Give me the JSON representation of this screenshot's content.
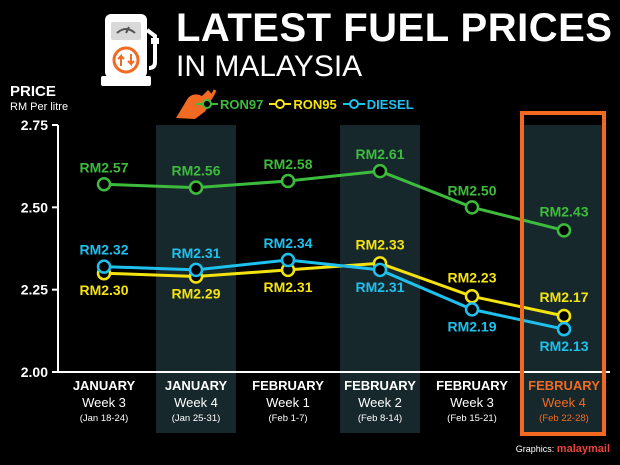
{
  "header": {
    "title_line1": "LATEST FUEL PRICES",
    "title_line2": "IN MALAYSIA"
  },
  "icons": {
    "pump": "fuel-pump-icon",
    "nozzle": "fuel-nozzle-icon",
    "pump_badge": "up-down-arrows-icon"
  },
  "credit": {
    "prefix": "Graphics:",
    "brand": "malaymail"
  },
  "colors": {
    "background": "#000000",
    "ron97": "#3dbb3d",
    "ron95": "#f5e30f",
    "diesel": "#1ec1ee",
    "highlight": "#f26a21",
    "band": "#16282b"
  },
  "chart_data": {
    "type": "line",
    "title": "LATEST FUEL PRICES IN MALAYSIA",
    "ylabel": "PRICE",
    "yunit": "RM Per litre",
    "ylim": [
      2.0,
      2.75
    ],
    "yticks": [
      "2.75",
      "2.50",
      "2.25",
      "2.00"
    ],
    "legend_position": "top",
    "grid": false,
    "categories": [
      {
        "month": "JANUARY",
        "week": "Week 3",
        "range": "(Jan 18-24)"
      },
      {
        "month": "JANUARY",
        "week": "Week 4",
        "range": "(Jan 25-31)"
      },
      {
        "month": "FEBRUARY",
        "week": "Week 1",
        "range": "(Feb 1-7)"
      },
      {
        "month": "FEBRUARY",
        "week": "Week 2",
        "range": "(Feb 8-14)"
      },
      {
        "month": "FEBRUARY",
        "week": "Week 3",
        "range": "(Feb 15-21)"
      },
      {
        "month": "FEBRUARY",
        "week": "Week 4",
        "range": "(Feb 22-28)"
      }
    ],
    "highlighted_category": 5,
    "shaded_categories": [
      1,
      3,
      5
    ],
    "series": [
      {
        "name": "RON97",
        "color": "#3dbb3d",
        "values": [
          2.57,
          2.56,
          2.58,
          2.61,
          2.5,
          2.43
        ],
        "labels": [
          "RM2.57",
          "RM2.56",
          "RM2.58",
          "RM2.61",
          "RM2.50",
          "RM2.43"
        ]
      },
      {
        "name": "RON95",
        "color": "#f5e30f",
        "values": [
          2.3,
          2.29,
          2.31,
          2.33,
          2.23,
          2.17
        ],
        "labels": [
          "RM2.30",
          "RM2.29",
          "RM2.31",
          "RM2.33",
          "RM2.23",
          "RM2.17"
        ]
      },
      {
        "name": "DIESEL",
        "color": "#1ec1ee",
        "values": [
          2.32,
          2.31,
          2.34,
          2.31,
          2.19,
          2.13
        ],
        "labels": [
          "RM2.32",
          "RM2.31",
          "RM2.34",
          "RM2.31",
          "RM2.19",
          "RM2.13"
        ]
      }
    ]
  }
}
